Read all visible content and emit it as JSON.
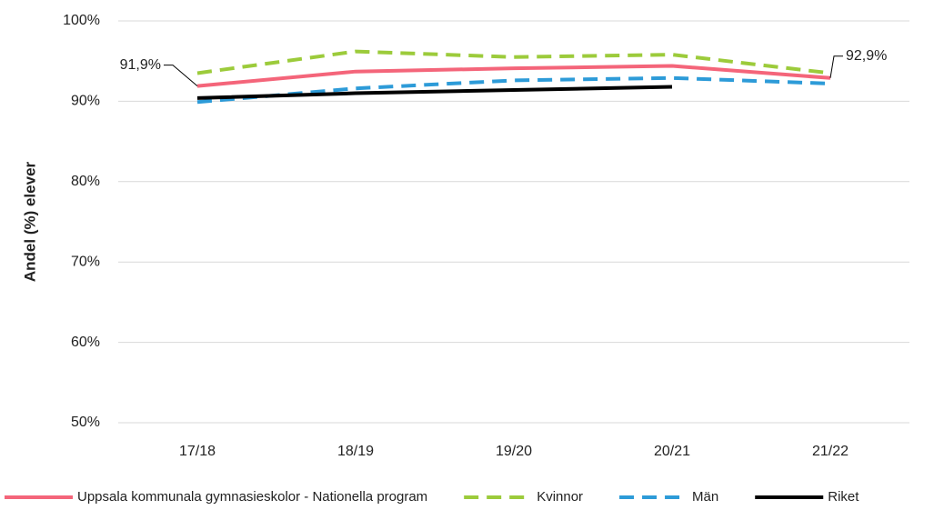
{
  "chart_data": {
    "type": "line",
    "ylabel": "Andel (%) elever",
    "categories": [
      "17/18",
      "18/19",
      "19/20",
      "20/21",
      "21/22"
    ],
    "ylim": [
      50,
      100
    ],
    "yticks": [
      {
        "value": 50,
        "label": "50%"
      },
      {
        "value": 60,
        "label": "60%"
      },
      {
        "value": 70,
        "label": "70%"
      },
      {
        "value": 80,
        "label": "80%"
      },
      {
        "value": 90,
        "label": "90%"
      },
      {
        "value": 100,
        "label": "100%"
      }
    ],
    "grid": true,
    "legend": "bottom",
    "series": [
      {
        "name": "Uppsala kommunala gymnasieskolor - Nationella program",
        "color": "#f4657a",
        "dash": "solid",
        "values": [
          91.9,
          93.7,
          94.1,
          94.4,
          92.9
        ],
        "value_labels": [
          "91,9%",
          null,
          null,
          null,
          "92,9%"
        ]
      },
      {
        "name": "Kvinnor",
        "color": "#9ccb3b",
        "dash": "dashed",
        "values": [
          93.5,
          96.2,
          95.5,
          95.8,
          93.5
        ]
      },
      {
        "name": "Män",
        "color": "#2d9bd8",
        "dash": "dashed",
        "values": [
          89.9,
          91.6,
          92.6,
          92.9,
          92.2
        ]
      },
      {
        "name": "Riket",
        "color": "#000000",
        "dash": "solid",
        "values": [
          90.4,
          91.0,
          91.4,
          91.8,
          null
        ]
      }
    ]
  }
}
